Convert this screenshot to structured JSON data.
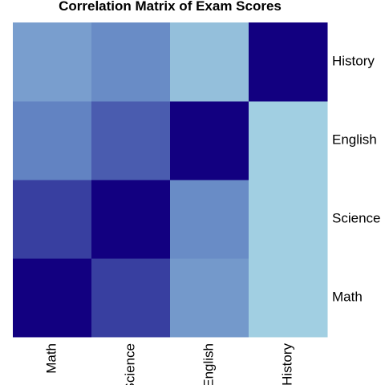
{
  "chart_data": {
    "type": "heatmap",
    "title": "Correlation Matrix of Exam Scores",
    "x_labels": [
      "Math",
      "Science",
      "English",
      "History"
    ],
    "y_labels": [
      "Math",
      "Science",
      "English",
      "History"
    ],
    "values": [
      [
        1.0,
        0.85,
        0.6,
        0.4
      ],
      [
        0.85,
        1.0,
        0.65,
        0.4
      ],
      [
        0.68,
        0.78,
        1.0,
        0.4
      ],
      [
        0.58,
        0.65,
        0.46,
        1.0
      ]
    ],
    "color_scale": {
      "low": "#a1cfe2",
      "mid": "#5e7ec0",
      "high": "#120080"
    },
    "legend": "none",
    "grid": false
  }
}
